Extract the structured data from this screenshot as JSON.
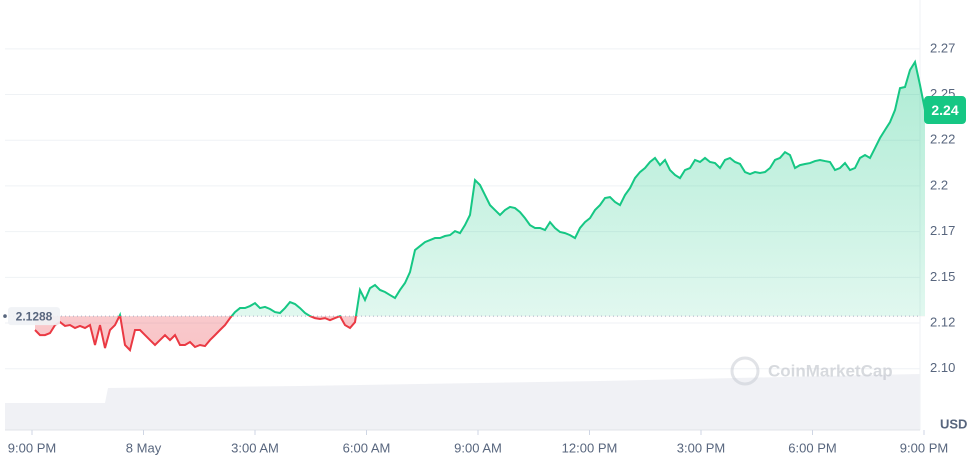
{
  "chart_data": {
    "type": "line",
    "values": [
      2.1212,
      2.1184,
      2.1184,
      2.1195,
      2.1239,
      2.1255,
      2.1234,
      2.1239,
      2.1223,
      2.1234,
      2.1223,
      2.1239,
      2.113,
      2.1239,
      2.1113,
      2.1212,
      2.1239,
      2.1294,
      2.113,
      2.1102,
      2.1212,
      2.1212,
      2.1184,
      2.1157,
      2.113,
      2.1157,
      2.1184,
      2.1157,
      2.1184,
      2.113,
      2.113,
      2.1146,
      2.1119,
      2.113,
      2.1124,
      2.1157,
      2.1184,
      2.1212,
      2.1239,
      2.1277,
      2.131,
      2.1332,
      2.1332,
      2.1343,
      2.1359,
      2.1332,
      2.1338,
      2.1327,
      2.131,
      2.1305,
      2.1332,
      2.1365,
      2.1354,
      2.1332,
      2.1305,
      2.1288,
      2.1277,
      2.1272,
      2.1277,
      2.1266,
      2.1277,
      2.1288,
      2.1239,
      2.1223,
      2.1255,
      2.1431,
      2.1376,
      2.1441,
      2.1458,
      2.1431,
      2.142,
      2.1403,
      2.1387,
      2.1431,
      2.1469,
      2.1529,
      2.1649,
      2.1671,
      2.1693,
      2.1704,
      2.1715,
      2.1715,
      2.1726,
      2.1731,
      2.1753,
      2.1742,
      2.1786,
      2.1841,
      2.2032,
      2.2005,
      2.195,
      2.1895,
      2.1868,
      2.1841,
      2.1868,
      2.1885,
      2.1879,
      2.1857,
      2.1824,
      2.1786,
      2.177,
      2.177,
      2.1759,
      2.1802,
      2.177,
      2.1748,
      2.1742,
      2.1731,
      2.1715,
      2.177,
      2.1802,
      2.1824,
      2.1868,
      2.1895,
      2.1934,
      2.1939,
      2.1912,
      2.1895,
      2.195,
      2.1988,
      2.2043,
      2.2076,
      2.2098,
      2.2131,
      2.2153,
      2.2114,
      2.2142,
      2.2087,
      2.206,
      2.2043,
      2.2087,
      2.2098,
      2.2142,
      2.2131,
      2.2153,
      2.2131,
      2.2125,
      2.2098,
      2.2142,
      2.2153,
      2.2131,
      2.212,
      2.2076,
      2.2065,
      2.2076,
      2.2071,
      2.2076,
      2.2098,
      2.2142,
      2.2153,
      2.2185,
      2.2169,
      2.2098,
      2.2114,
      2.212,
      2.2125,
      2.2136,
      2.2142,
      2.2136,
      2.2131,
      2.2087,
      2.2098,
      2.2125,
      2.2087,
      2.2098,
      2.2153,
      2.2169,
      2.2153,
      2.2207,
      2.2262,
      2.2306,
      2.2349,
      2.2415,
      2.2535,
      2.2541,
      2.2634,
      2.2678,
      2.2552,
      2.2415
    ],
    "color_up": "#16c784",
    "color_down": "#ea3943",
    "baseline": 2.1288,
    "price_tag": "2.24",
    "x_labels": [
      "9:00 PM",
      "8 May",
      "3:00 AM",
      "6:00 AM",
      "9:00 AM",
      "12:00 PM",
      "3:00 PM",
      "6:00 PM",
      "9:00 PM"
    ],
    "ylim": [
      2.0665,
      2.3017
    ],
    "yticks": [
      {
        "value": 2.275,
        "label": "2.27"
      },
      {
        "value": 2.25,
        "label": "2.25"
      },
      {
        "value": 2.225,
        "label": "2.22"
      },
      2.2,
      {
        "value": 2.175,
        "label": "2.17"
      },
      2.15,
      {
        "value": 2.125,
        "label": "2.12"
      },
      {
        "value": 2.1,
        "label": "2.10"
      }
    ],
    "grid": true,
    "y_unit": "USD",
    "watermark": "CoinMarketCap"
  }
}
